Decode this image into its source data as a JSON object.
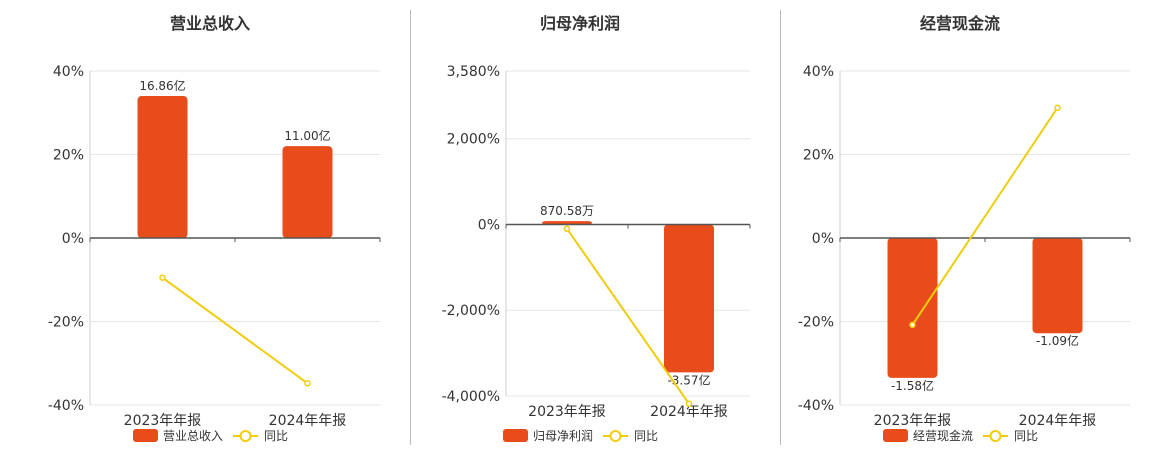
{
  "colors": {
    "bar": "#E84C1A",
    "line": "#F2CC0C",
    "axis": "#555555",
    "grid": "#E6E6E6",
    "divider": "#BBBBBB"
  },
  "chart_data": [
    {
      "type": "bar",
      "title": "营业总收入",
      "categories": [
        "2023年年报",
        "2024年年报"
      ],
      "ylim": [
        -40,
        40
      ],
      "yticks": [
        40,
        20,
        0,
        -20,
        -40
      ],
      "ytick_labels": [
        "40%",
        "20%",
        "0%",
        "-20%",
        "-40%"
      ],
      "grid": true,
      "legend_position": "bottom",
      "series": [
        {
          "name": "营业总收入",
          "kind": "bar",
          "values": [
            34,
            22
          ],
          "labels": [
            "16.86亿",
            "11.00亿"
          ]
        },
        {
          "name": "同比",
          "kind": "line",
          "values": [
            -9.5,
            -34.8
          ]
        }
      ]
    },
    {
      "type": "bar",
      "title": "归母净利润",
      "categories": [
        "2023年年报",
        "2024年年报"
      ],
      "ylim": [
        -4000,
        3580
      ],
      "yticks": [
        3580,
        2000,
        0,
        -2000,
        -4000
      ],
      "ytick_labels": [
        "3,580%",
        "2,000%",
        "0%",
        "-2,000%",
        "-4,000%"
      ],
      "grid": true,
      "legend_position": "bottom",
      "series": [
        {
          "name": "归母净利润",
          "kind": "bar",
          "values": [
            80,
            -3450
          ],
          "labels": [
            "870.58万",
            "-3.57亿"
          ]
        },
        {
          "name": "同比",
          "kind": "line",
          "values": [
            -100,
            -4180
          ]
        }
      ]
    },
    {
      "type": "bar",
      "title": "经营现金流",
      "categories": [
        "2023年年报",
        "2024年年报"
      ],
      "ylim": [
        -40,
        40
      ],
      "yticks": [
        40,
        20,
        0,
        -20,
        -40
      ],
      "ytick_labels": [
        "40%",
        "20%",
        "0%",
        "-20%",
        "-40%"
      ],
      "grid": true,
      "legend_position": "bottom",
      "series": [
        {
          "name": "经营现金流",
          "kind": "bar",
          "values": [
            -33.5,
            -22.8
          ],
          "labels": [
            "-1.58亿",
            "-1.09亿"
          ]
        },
        {
          "name": "同比",
          "kind": "line",
          "values": [
            -20.8,
            31.2
          ]
        }
      ]
    }
  ]
}
